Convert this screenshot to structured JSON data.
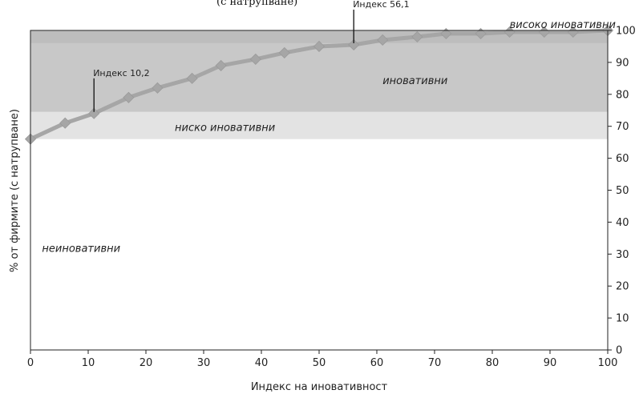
{
  "chart_data": {
    "type": "area",
    "title": "",
    "xlabel": "Индекс на иновативност",
    "ylabel": "% от фирмите (с натрупване)",
    "xlim": [
      0,
      100
    ],
    "ylim": [
      0,
      100
    ],
    "x_ticks": [
      0,
      10,
      20,
      30,
      40,
      50,
      60,
      70,
      80,
      90,
      100
    ],
    "y_ticks": [
      0,
      10,
      20,
      30,
      40,
      50,
      60,
      70,
      80,
      90,
      100
    ],
    "y_axis_side": "right",
    "grid": false,
    "series": [
      {
        "x": [
          0,
          6,
          11,
          17,
          22,
          28,
          33,
          39,
          44,
          50,
          56,
          61,
          67,
          72,
          78,
          83,
          89,
          94,
          100
        ],
        "y": [
          66,
          71,
          74,
          79,
          82,
          85,
          89,
          91,
          93,
          95,
          95.5,
          97,
          98,
          99,
          99,
          99.5,
          99.5,
          99.5,
          100
        ],
        "color": "#a6a6a6"
      }
    ],
    "bands": [
      {
        "label": "неиновативни",
        "from": 0,
        "to": 66,
        "color": "#ffffff",
        "label_x": 2,
        "label_y": 32
      },
      {
        "label": "ниско иновативни",
        "from": 66,
        "to": 74.5,
        "color": "#e3e3e3",
        "label_x": 25,
        "label_y": 69.8
      },
      {
        "label": "иновативни",
        "from": 74.5,
        "to": 96,
        "color": "#c8c8c8",
        "label_x": 61,
        "label_y": 84.5
      },
      {
        "label": "високо иновативни",
        "from": 96,
        "to": 100,
        "color": "#bdbdbd",
        "label_x": 83,
        "label_y": 102
      }
    ],
    "annotations": [
      {
        "text": "Индекс 10,2",
        "x": 11,
        "y": 74,
        "label_y": 83.5
      },
      {
        "text": "Индекс 56,1",
        "x": 56,
        "y": 95.5,
        "label_y": 105
      }
    ],
    "colors": {
      "line": "#a6a6a6",
      "marker": "#a6a6a6",
      "axis": "#222222"
    }
  },
  "cropped_header_text": "(с натрупване)"
}
